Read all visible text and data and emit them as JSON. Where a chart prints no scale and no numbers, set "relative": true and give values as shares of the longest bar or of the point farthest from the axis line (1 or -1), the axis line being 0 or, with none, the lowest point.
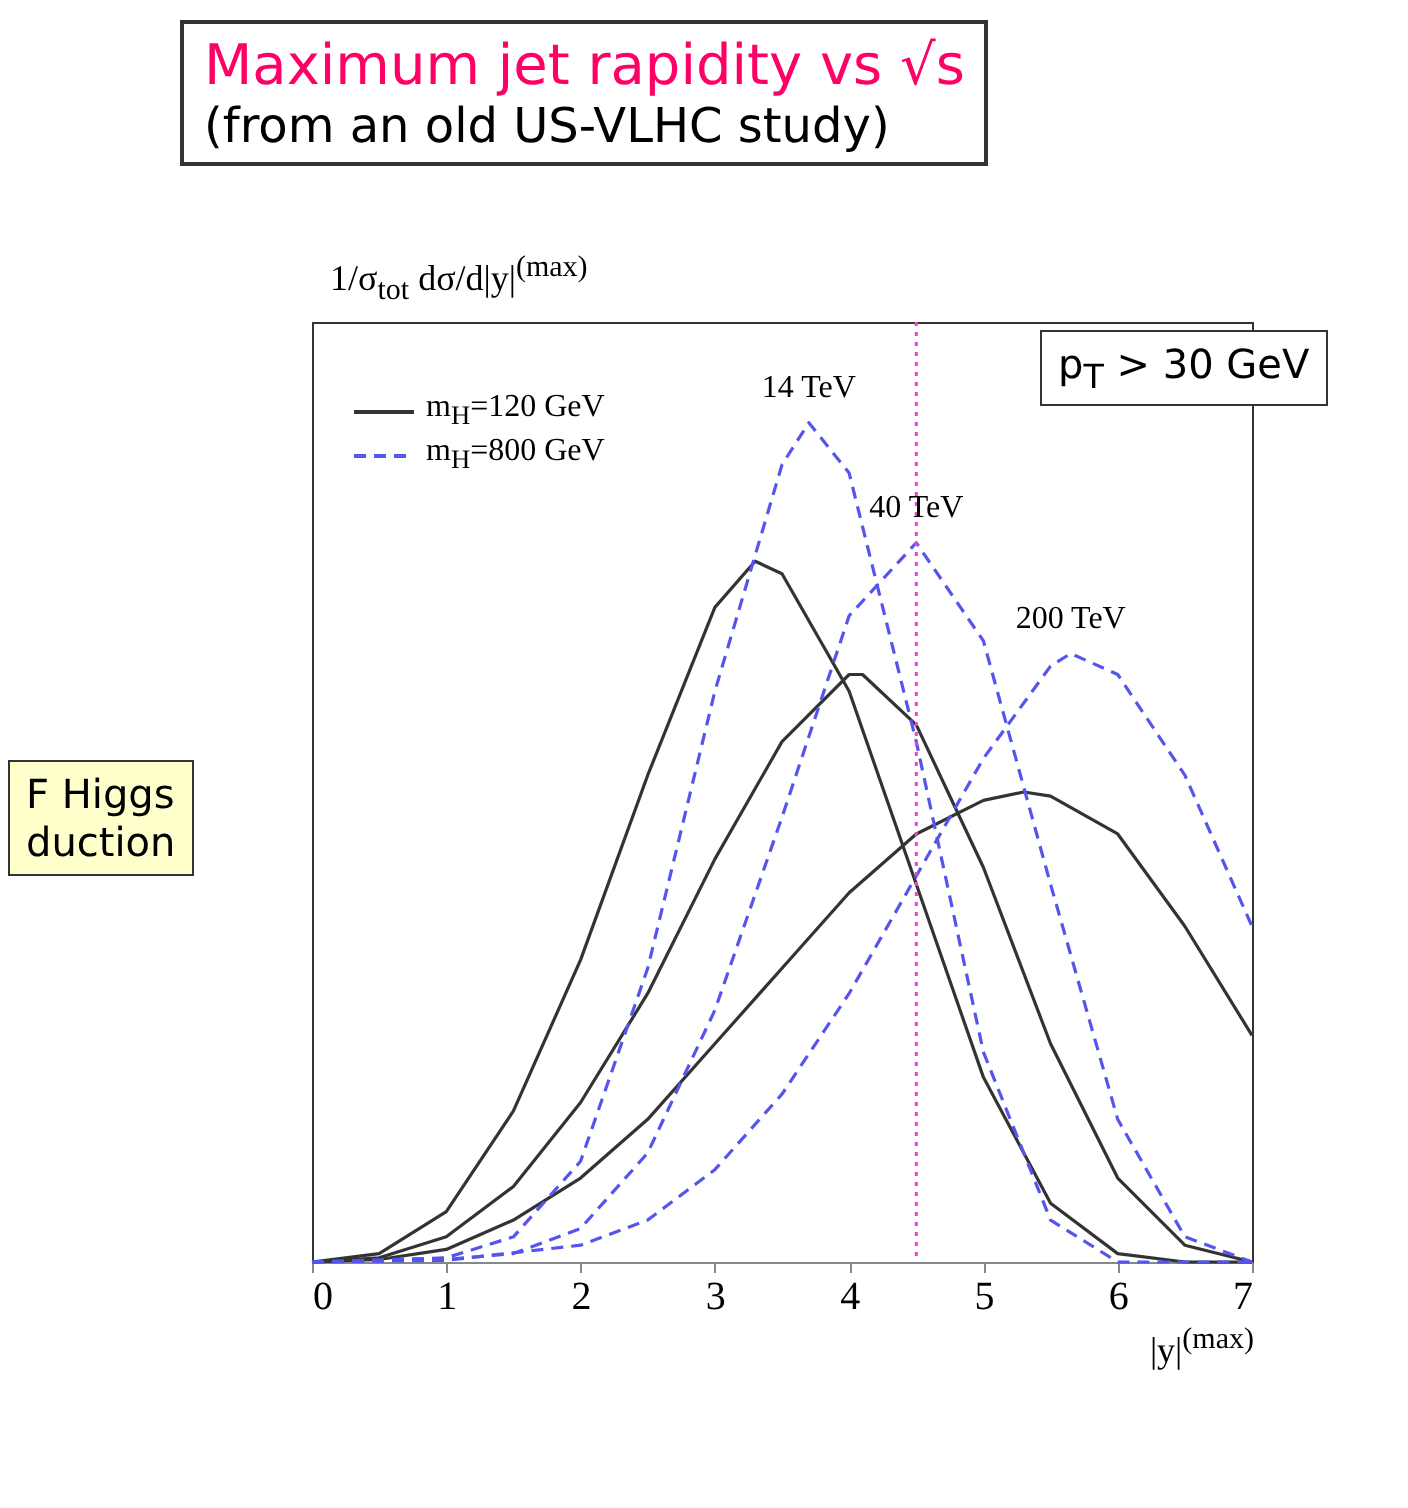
{
  "chart_data": {
    "type": "line",
    "title": "Maximum jet rapidity vs √s",
    "subtitle": "(from an old US-VLHC study)",
    "xlabel": "|y|$^{(max)}$",
    "ylabel": "1/σ$_{tot}$ dσ/d|y|$^{(max)}$",
    "relative": true,
    "xlim": [
      0,
      7
    ],
    "xticks": [
      0,
      1,
      2,
      3,
      4,
      5,
      6,
      7
    ],
    "legend": "top left",
    "grid": false,
    "marker": "none",
    "series": [
      {
        "name": "m$_{H}$=120 GeV",
        "color": "#333333",
        "line_style": "solid",
        "x": [
          0,
          0.5,
          1,
          1.5,
          2,
          2.5,
          3,
          3.3,
          3.5,
          4,
          4.5,
          5,
          5.5,
          6,
          6.5,
          7
        ],
        "values": [
          0,
          0.01,
          0.06,
          0.18,
          0.36,
          0.58,
          0.78,
          0.835,
          0.82,
          0.68,
          0.45,
          0.22,
          0.07,
          0.01,
          0,
          0
        ]
      },
      {
        "color": "#333333",
        "line_style": "solid",
        "x": [
          0,
          0.5,
          1,
          1.5,
          2,
          2.5,
          3,
          3.5,
          4,
          4.1,
          4.5,
          5,
          5.5,
          6,
          6.5,
          7
        ],
        "values": [
          0,
          0.005,
          0.03,
          0.09,
          0.19,
          0.32,
          0.48,
          0.62,
          0.7,
          0.7,
          0.64,
          0.47,
          0.26,
          0.1,
          0.02,
          0
        ]
      },
      {
        "color": "#333333",
        "line_style": "solid",
        "x": [
          0,
          0.5,
          1,
          1.5,
          2,
          2.5,
          3,
          3.5,
          4,
          4.5,
          5,
          5.3,
          5.5,
          6,
          6.5,
          7
        ],
        "values": [
          0,
          0.003,
          0.015,
          0.05,
          0.1,
          0.17,
          0.26,
          0.35,
          0.44,
          0.51,
          0.55,
          0.56,
          0.555,
          0.51,
          0.4,
          0.27
        ]
      },
      {
        "name": "m$_{H}$=800 GeV",
        "color": "#5555ee",
        "line_style": "dashed",
        "x": [
          0,
          1,
          1.5,
          2,
          2.5,
          3,
          3.5,
          3.7,
          4,
          4.5,
          5,
          5.5,
          6,
          7
        ],
        "values": [
          0,
          0.005,
          0.03,
          0.12,
          0.35,
          0.68,
          0.95,
          1.0,
          0.94,
          0.62,
          0.25,
          0.05,
          0,
          0
        ]
      },
      {
        "color": "#5555ee",
        "line_style": "dashed",
        "x": [
          0,
          1,
          1.5,
          2,
          2.5,
          3,
          3.5,
          4,
          4.5,
          5,
          5.5,
          6,
          6.5,
          7
        ],
        "values": [
          0,
          0.003,
          0.01,
          0.04,
          0.13,
          0.3,
          0.53,
          0.77,
          0.857,
          0.74,
          0.45,
          0.17,
          0.03,
          0
        ]
      },
      {
        "color": "#5555ee",
        "line_style": "dashed",
        "x": [
          0,
          1,
          2,
          2.5,
          3,
          3.5,
          4,
          4.5,
          5,
          5.5,
          5.65,
          6,
          6.5,
          7
        ],
        "values": [
          0,
          0.002,
          0.02,
          0.05,
          0.11,
          0.2,
          0.32,
          0.46,
          0.6,
          0.71,
          0.725,
          0.7,
          0.58,
          0.4
        ]
      }
    ],
    "ref_lines": [
      {
        "axis": "x",
        "value": 4.5,
        "color": "#ee44cc",
        "line_style": "dotted"
      }
    ],
    "annotations": [
      {
        "text": "14 TeV",
        "x": 3.7,
        "y": 1.0
      },
      {
        "text": "40 TeV",
        "x": 4.5,
        "y": 0.857
      },
      {
        "text": "200 TeV",
        "x": 5.65,
        "y": 0.725
      },
      "p$_{T}$ > 30 GeV",
      "F Higgs",
      "duction"
    ]
  }
}
